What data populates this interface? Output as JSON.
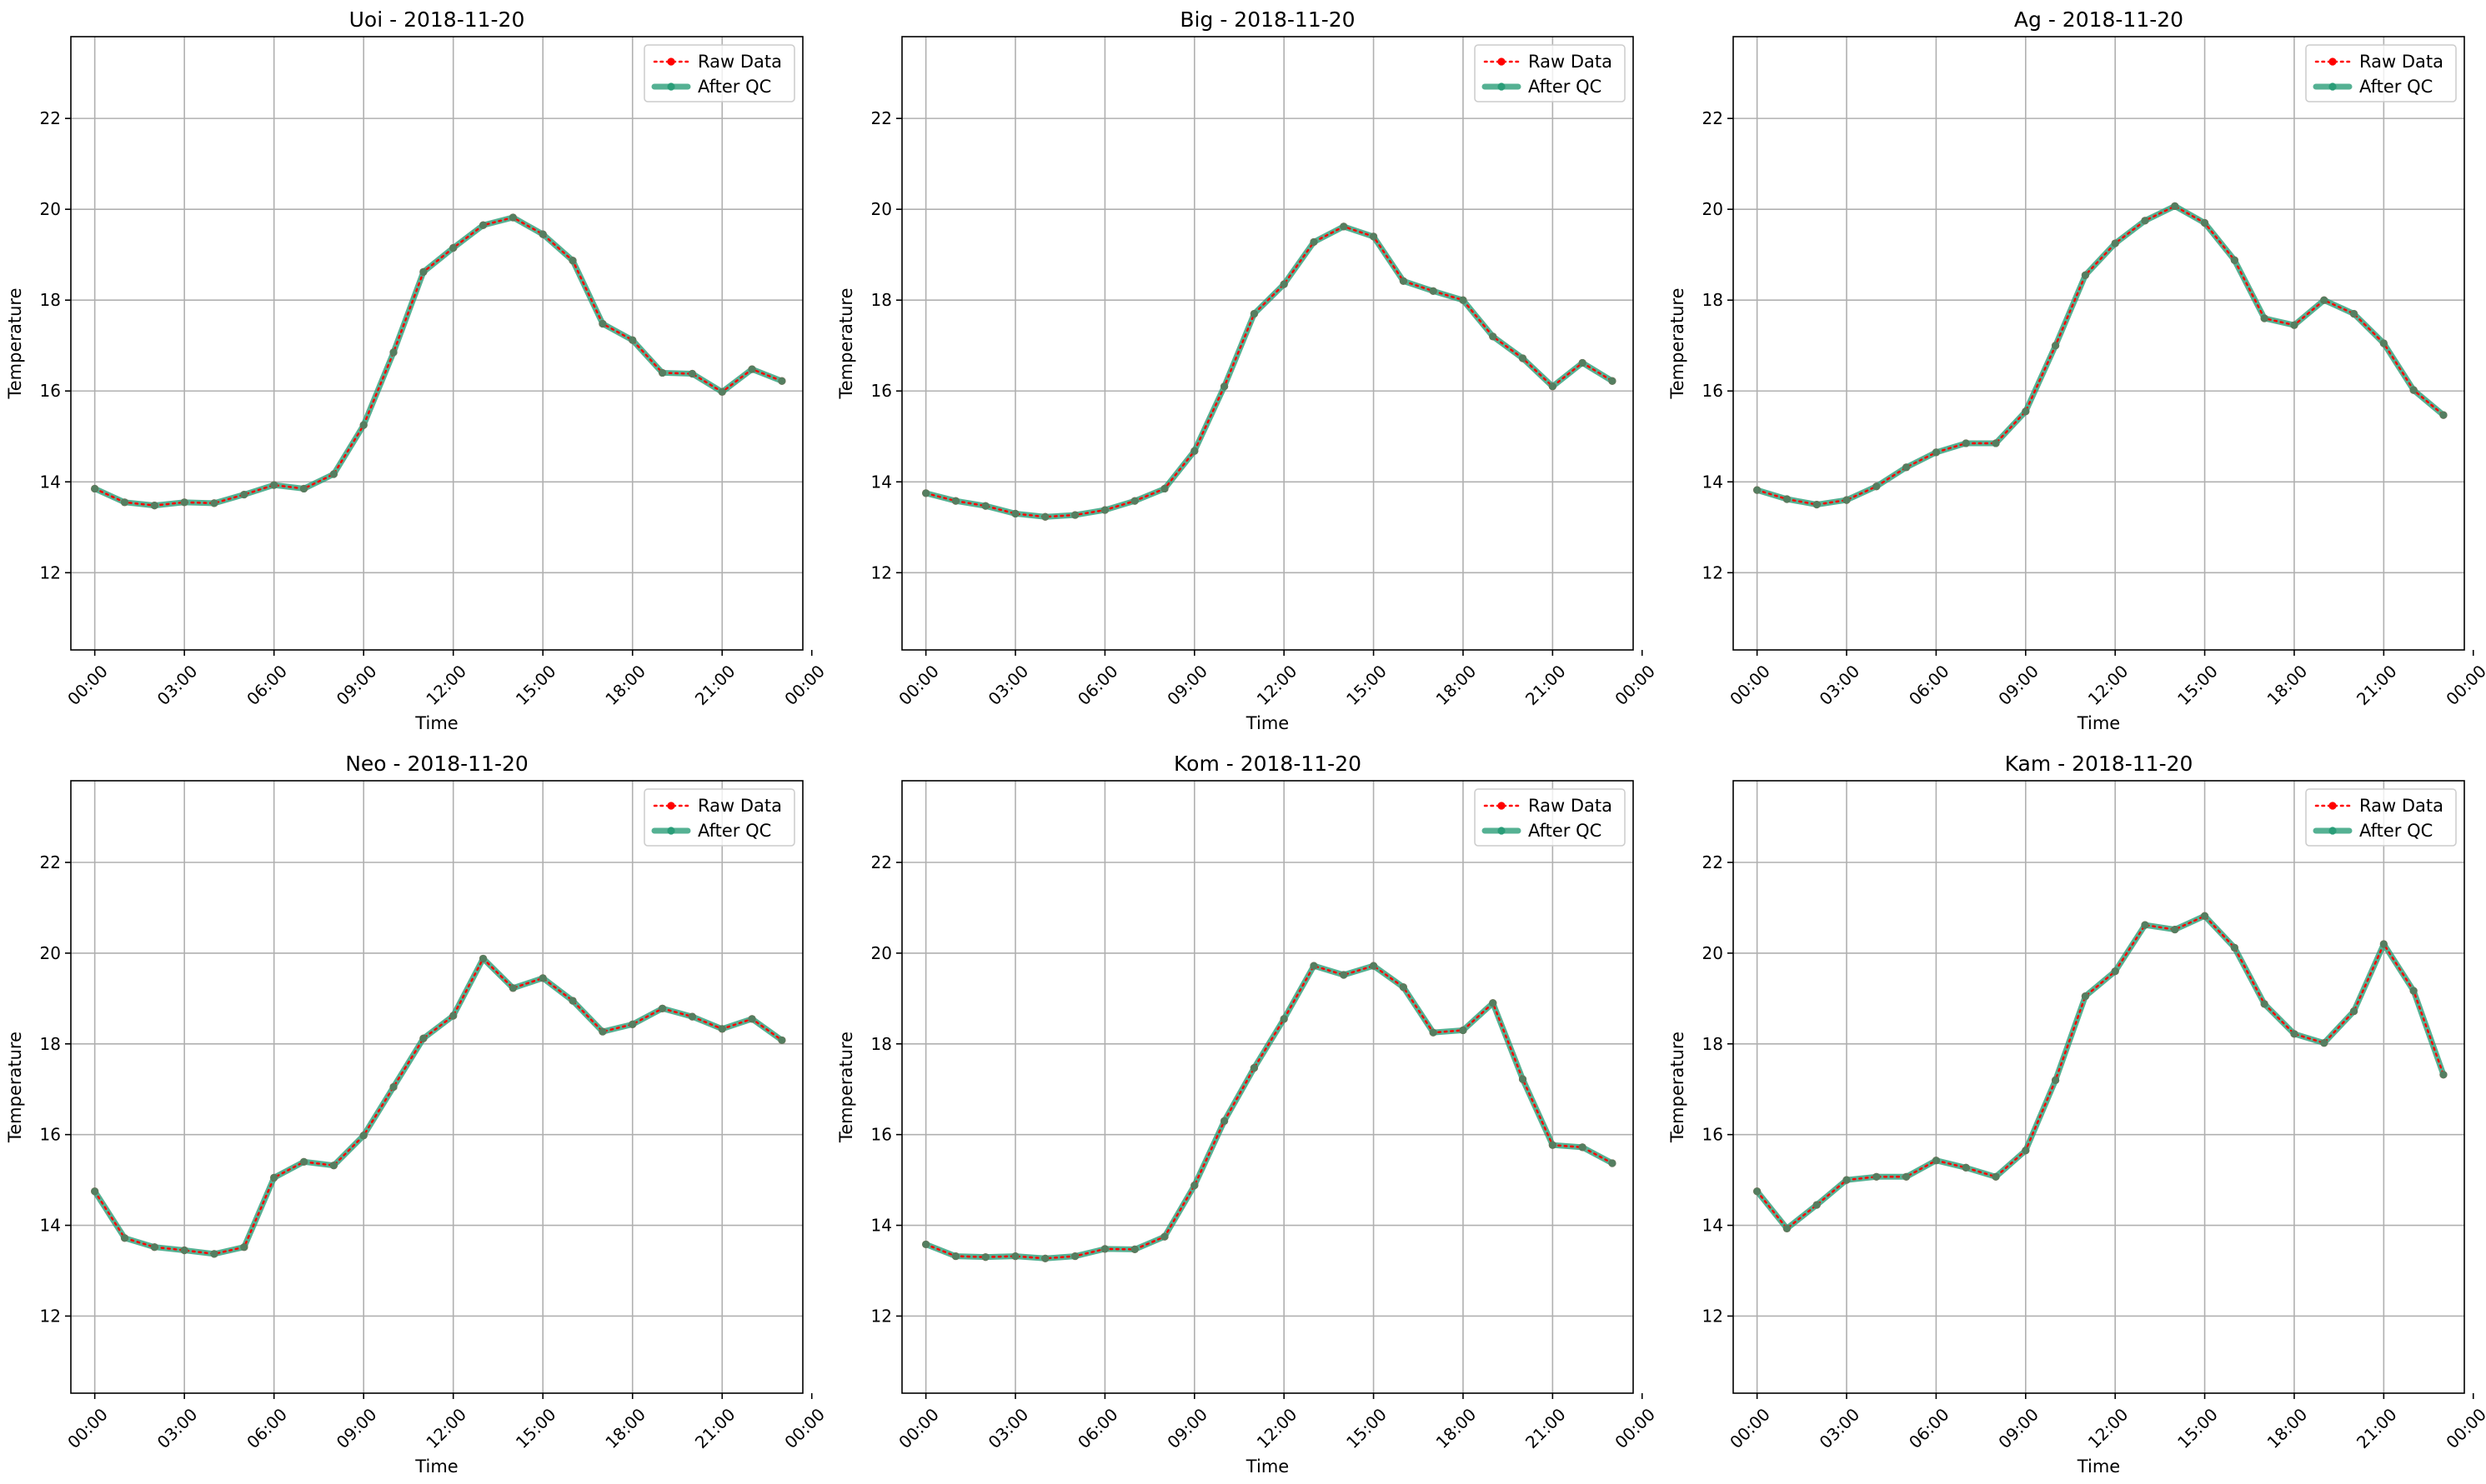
{
  "chart_data": [
    {
      "type": "line",
      "title": "Uoi - 2018-11-20",
      "xlabel": "Time",
      "ylabel": "Temperature",
      "ylim": [
        10.3,
        23.8
      ],
      "yticks": [
        12,
        14,
        16,
        18,
        20,
        22
      ],
      "xlim": [
        -0.8,
        23.7
      ],
      "xticks": [
        0,
        3,
        6,
        9,
        12,
        15,
        18,
        21,
        24
      ],
      "xtick_labels": [
        "00:00",
        "03:00",
        "06:00",
        "09:00",
        "12:00",
        "15:00",
        "18:00",
        "21:00",
        "00:00"
      ],
      "grid": true,
      "legend_position": "top-right",
      "x": [
        0,
        1,
        2,
        3,
        4,
        5,
        6,
        7,
        8,
        9,
        10,
        11,
        12,
        13,
        14,
        15,
        16,
        17,
        18,
        19,
        20,
        21,
        22,
        23
      ],
      "series": [
        {
          "name": "Raw Data",
          "color": "#ff0000",
          "style": "dotted",
          "values": [
            13.85,
            13.55,
            13.48,
            13.55,
            13.53,
            13.72,
            13.93,
            13.85,
            14.17,
            15.25,
            16.85,
            18.62,
            19.15,
            19.65,
            19.82,
            19.45,
            18.87,
            17.48,
            17.12,
            16.4,
            16.38,
            15.98,
            16.48,
            16.22
          ]
        },
        {
          "name": "After QC",
          "color": "#2a9d78",
          "style": "solid",
          "values": [
            13.85,
            13.55,
            13.48,
            13.55,
            13.53,
            13.72,
            13.93,
            13.85,
            14.17,
            15.25,
            16.85,
            18.62,
            19.15,
            19.65,
            19.82,
            19.45,
            18.87,
            17.48,
            17.12,
            16.4,
            16.38,
            15.98,
            16.48,
            16.22
          ]
        }
      ]
    },
    {
      "type": "line",
      "title": "Big - 2018-11-20",
      "xlabel": "Time",
      "ylabel": "Temperature",
      "ylim": [
        10.3,
        23.8
      ],
      "yticks": [
        12,
        14,
        16,
        18,
        20,
        22
      ],
      "xlim": [
        -0.8,
        23.7
      ],
      "xticks": [
        0,
        3,
        6,
        9,
        12,
        15,
        18,
        21,
        24
      ],
      "xtick_labels": [
        "00:00",
        "03:00",
        "06:00",
        "09:00",
        "12:00",
        "15:00",
        "18:00",
        "21:00",
        "00:00"
      ],
      "grid": true,
      "legend_position": "top-right",
      "x": [
        0,
        1,
        2,
        3,
        4,
        5,
        6,
        7,
        8,
        9,
        10,
        11,
        12,
        13,
        14,
        15,
        16,
        17,
        18,
        19,
        20,
        21,
        22,
        23
      ],
      "series": [
        {
          "name": "Raw Data",
          "color": "#ff0000",
          "style": "dotted",
          "values": [
            13.75,
            13.58,
            13.47,
            13.3,
            13.23,
            13.27,
            13.38,
            13.58,
            13.85,
            14.68,
            16.1,
            17.7,
            18.35,
            19.28,
            19.62,
            19.4,
            18.42,
            18.2,
            18.0,
            17.2,
            16.72,
            16.1,
            16.62,
            16.22
          ]
        },
        {
          "name": "After QC",
          "color": "#2a9d78",
          "style": "solid",
          "values": [
            13.75,
            13.58,
            13.47,
            13.3,
            13.23,
            13.27,
            13.38,
            13.58,
            13.85,
            14.68,
            16.1,
            17.7,
            18.35,
            19.28,
            19.62,
            19.4,
            18.42,
            18.2,
            18.0,
            17.2,
            16.72,
            16.1,
            16.62,
            16.22
          ]
        }
      ]
    },
    {
      "type": "line",
      "title": "Ag - 2018-11-20",
      "xlabel": "Time",
      "ylabel": "Temperature",
      "ylim": [
        10.3,
        23.8
      ],
      "yticks": [
        12,
        14,
        16,
        18,
        20,
        22
      ],
      "xlim": [
        -0.8,
        23.7
      ],
      "xticks": [
        0,
        3,
        6,
        9,
        12,
        15,
        18,
        21,
        24
      ],
      "xtick_labels": [
        "00:00",
        "03:00",
        "06:00",
        "09:00",
        "12:00",
        "15:00",
        "18:00",
        "21:00",
        "00:00"
      ],
      "grid": true,
      "legend_position": "top-right",
      "x": [
        0,
        1,
        2,
        3,
        4,
        5,
        6,
        7,
        8,
        9,
        10,
        11,
        12,
        13,
        14,
        15,
        16,
        17,
        18,
        19,
        20,
        21,
        22,
        23
      ],
      "series": [
        {
          "name": "Raw Data",
          "color": "#ff0000",
          "style": "dotted",
          "values": [
            13.82,
            13.62,
            13.5,
            13.6,
            13.9,
            14.32,
            14.65,
            14.85,
            14.85,
            15.55,
            17.0,
            18.55,
            19.25,
            19.75,
            20.07,
            19.7,
            18.88,
            17.6,
            17.45,
            18.0,
            17.7,
            17.05,
            16.02,
            15.47
          ]
        },
        {
          "name": "After QC",
          "color": "#2a9d78",
          "style": "solid",
          "values": [
            13.82,
            13.62,
            13.5,
            13.6,
            13.9,
            14.32,
            14.65,
            14.85,
            14.85,
            15.55,
            17.0,
            18.55,
            19.25,
            19.75,
            20.07,
            19.7,
            18.88,
            17.6,
            17.45,
            18.0,
            17.7,
            17.05,
            16.02,
            15.47
          ]
        }
      ]
    },
    {
      "type": "line",
      "title": "Neo - 2018-11-20",
      "xlabel": "Time",
      "ylabel": "Temperature",
      "ylim": [
        10.3,
        23.8
      ],
      "yticks": [
        12,
        14,
        16,
        18,
        20,
        22
      ],
      "xlim": [
        -0.8,
        23.7
      ],
      "xticks": [
        0,
        3,
        6,
        9,
        12,
        15,
        18,
        21,
        24
      ],
      "xtick_labels": [
        "00:00",
        "03:00",
        "06:00",
        "09:00",
        "12:00",
        "15:00",
        "18:00",
        "21:00",
        "00:00"
      ],
      "grid": true,
      "legend_position": "top-right",
      "x": [
        0,
        1,
        2,
        3,
        4,
        5,
        6,
        7,
        8,
        9,
        10,
        11,
        12,
        13,
        14,
        15,
        16,
        17,
        18,
        19,
        20,
        21,
        22,
        23
      ],
      "series": [
        {
          "name": "Raw Data",
          "color": "#ff0000",
          "style": "dotted",
          "values": [
            14.75,
            13.72,
            13.52,
            13.45,
            13.37,
            13.52,
            15.05,
            15.4,
            15.32,
            15.98,
            17.05,
            18.12,
            18.62,
            19.88,
            19.23,
            19.45,
            18.95,
            18.27,
            18.43,
            18.78,
            18.6,
            18.33,
            18.55,
            18.08
          ]
        },
        {
          "name": "After QC",
          "color": "#2a9d78",
          "style": "solid",
          "values": [
            14.75,
            13.72,
            13.52,
            13.45,
            13.37,
            13.52,
            15.05,
            15.4,
            15.32,
            15.98,
            17.05,
            18.12,
            18.62,
            19.88,
            19.23,
            19.45,
            18.95,
            18.27,
            18.43,
            18.78,
            18.6,
            18.33,
            18.55,
            18.08
          ]
        }
      ]
    },
    {
      "type": "line",
      "title": "Kom - 2018-11-20",
      "xlabel": "Time",
      "ylabel": "Temperature",
      "ylim": [
        10.3,
        23.8
      ],
      "yticks": [
        12,
        14,
        16,
        18,
        20,
        22
      ],
      "xlim": [
        -0.8,
        23.7
      ],
      "xticks": [
        0,
        3,
        6,
        9,
        12,
        15,
        18,
        21,
        24
      ],
      "xtick_labels": [
        "00:00",
        "03:00",
        "06:00",
        "09:00",
        "12:00",
        "15:00",
        "18:00",
        "21:00",
        "00:00"
      ],
      "grid": true,
      "legend_position": "top-right",
      "x": [
        0,
        1,
        2,
        3,
        4,
        5,
        6,
        7,
        8,
        9,
        10,
        11,
        12,
        13,
        14,
        15,
        16,
        17,
        18,
        19,
        20,
        21,
        22,
        23
      ],
      "series": [
        {
          "name": "Raw Data",
          "color": "#ff0000",
          "style": "dotted",
          "values": [
            13.58,
            13.32,
            13.3,
            13.32,
            13.27,
            13.32,
            13.48,
            13.47,
            13.75,
            14.88,
            16.3,
            17.47,
            18.55,
            19.72,
            19.52,
            19.72,
            19.25,
            18.25,
            18.3,
            18.9,
            17.22,
            15.77,
            15.72,
            15.37
          ]
        },
        {
          "name": "After QC",
          "color": "#2a9d78",
          "style": "solid",
          "values": [
            13.58,
            13.32,
            13.3,
            13.32,
            13.27,
            13.32,
            13.48,
            13.47,
            13.75,
            14.88,
            16.3,
            17.47,
            18.55,
            19.72,
            19.52,
            19.72,
            19.25,
            18.25,
            18.3,
            18.9,
            17.22,
            15.77,
            15.72,
            15.37
          ]
        }
      ]
    },
    {
      "type": "line",
      "title": "Kam - 2018-11-20",
      "xlabel": "Time",
      "ylabel": "Temperature",
      "ylim": [
        10.3,
        23.8
      ],
      "yticks": [
        12,
        14,
        16,
        18,
        20,
        22
      ],
      "xlim": [
        -0.8,
        23.7
      ],
      "xticks": [
        0,
        3,
        6,
        9,
        12,
        15,
        18,
        21,
        24
      ],
      "xtick_labels": [
        "00:00",
        "03:00",
        "06:00",
        "09:00",
        "12:00",
        "15:00",
        "18:00",
        "21:00",
        "00:00"
      ],
      "grid": true,
      "legend_position": "top-right",
      "x": [
        0,
        1,
        2,
        3,
        4,
        5,
        6,
        7,
        8,
        9,
        10,
        11,
        12,
        13,
        14,
        15,
        16,
        17,
        18,
        19,
        20,
        21,
        22,
        23
      ],
      "series": [
        {
          "name": "Raw Data",
          "color": "#ff0000",
          "style": "dotted",
          "values": [
            14.75,
            13.93,
            14.45,
            15.0,
            15.07,
            15.07,
            15.43,
            15.27,
            15.07,
            15.65,
            17.2,
            19.05,
            19.6,
            20.62,
            20.52,
            20.82,
            20.12,
            18.88,
            18.22,
            18.02,
            18.72,
            20.2,
            19.17,
            17.32
          ]
        },
        {
          "name": "After QC",
          "color": "#2a9d78",
          "style": "solid",
          "values": [
            14.75,
            13.93,
            14.45,
            15.0,
            15.07,
            15.07,
            15.43,
            15.27,
            15.07,
            15.65,
            17.2,
            19.05,
            19.6,
            20.62,
            20.52,
            20.82,
            20.12,
            18.88,
            18.22,
            18.02,
            18.72,
            20.2,
            19.17,
            17.32
          ]
        }
      ]
    }
  ]
}
